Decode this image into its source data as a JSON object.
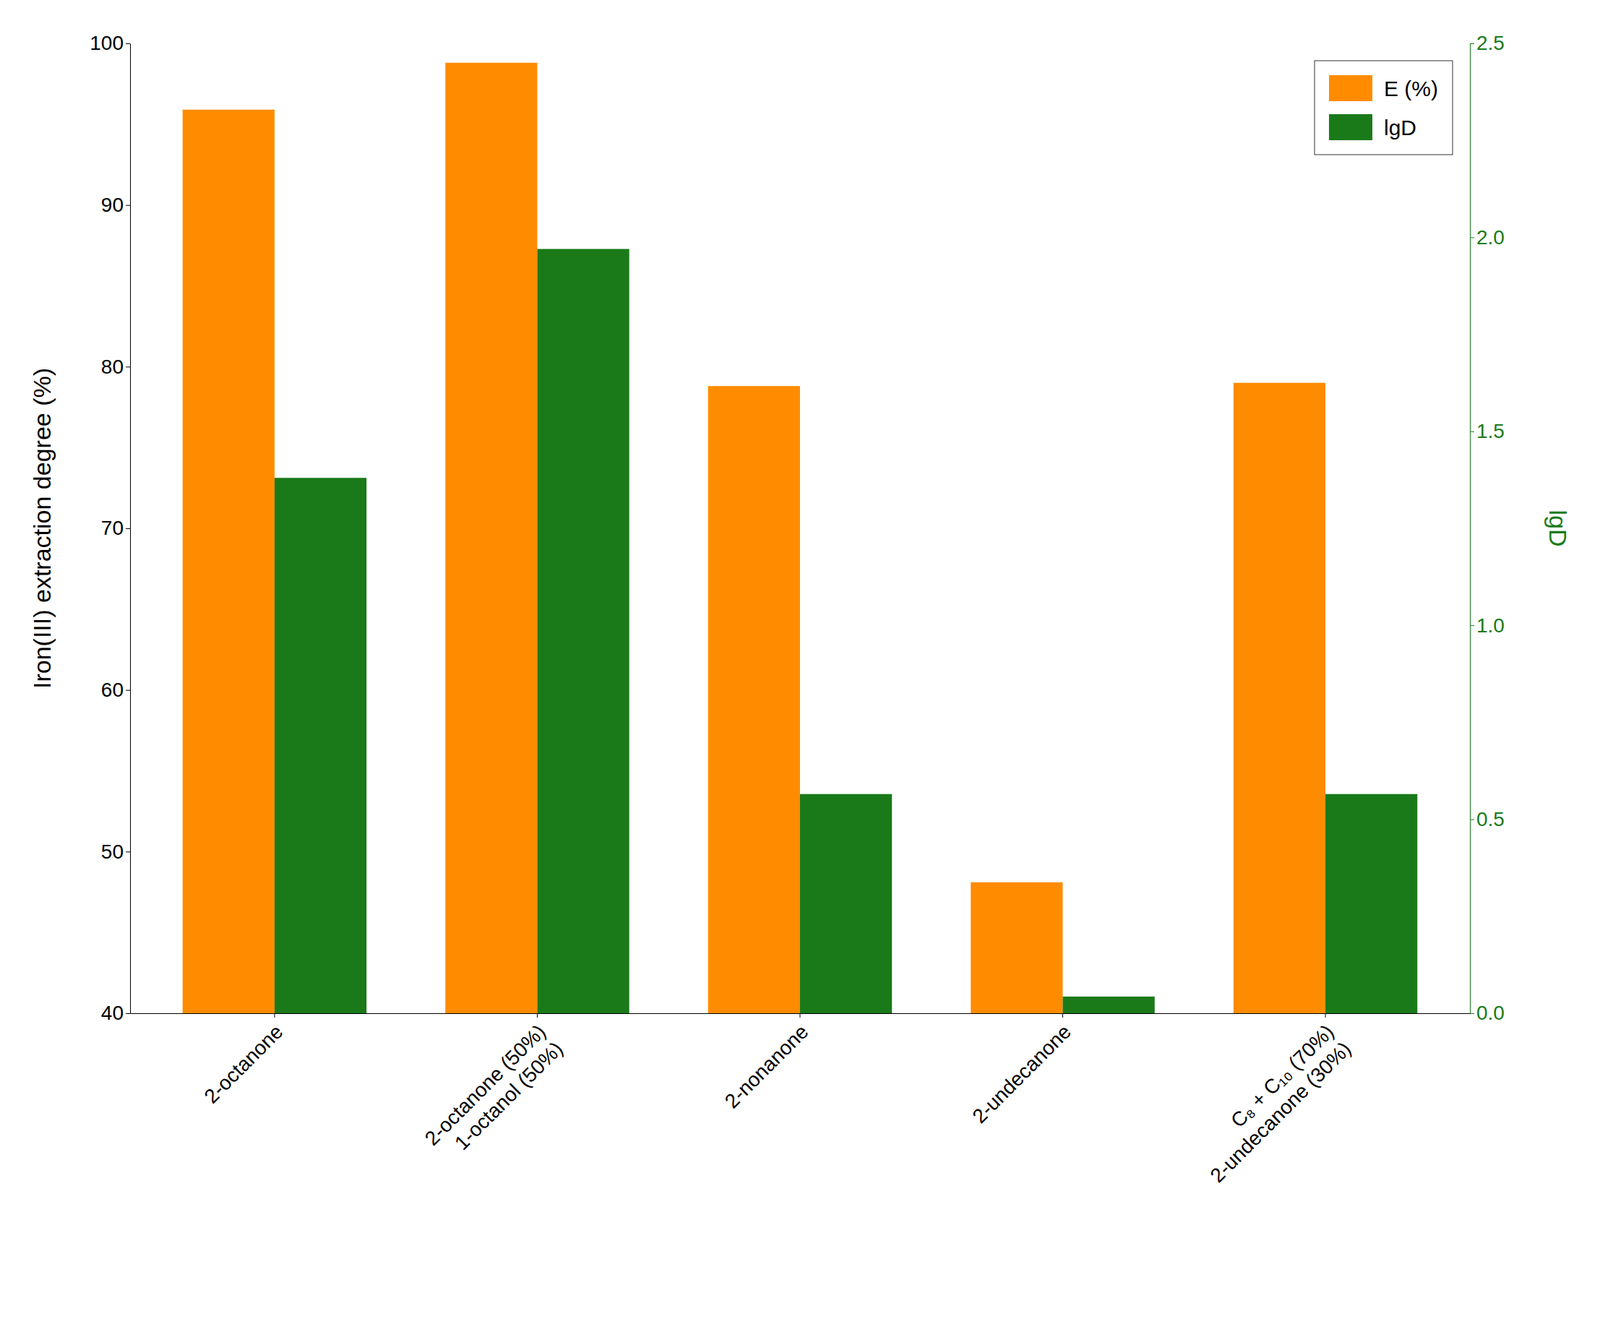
{
  "chart_data": {
    "type": "bar",
    "categories": [
      "2-octanone",
      "2-octanone (50%)\n1-octanol (50%)",
      "2-nonanone",
      "2-undecanone",
      "C₈ + C₁₀ (70%)\n2-undecanone (30%)"
    ],
    "series": [
      {
        "name": "E (%)",
        "color": "#FF8C00",
        "values": [
          95.9,
          98.8,
          78.8,
          48.1,
          79.0
        ]
      },
      {
        "name": "lgD",
        "color": "#1a7a1a",
        "axis": "y2",
        "values": [
          1.38,
          1.97,
          0.565,
          0.043,
          0.565
        ]
      }
    ],
    "ylabel": "Iron(III) extraction degree (%)",
    "y2label": "lgD",
    "ylim": [
      40,
      100
    ],
    "yticks": [
      40,
      50,
      60,
      70,
      80,
      90,
      100
    ],
    "y2lim": [
      0.0,
      2.5
    ],
    "y2ticks": [
      {
        "value": 0,
        "label": "0.0"
      },
      0.5,
      {
        "value": 1,
        "label": "1.0"
      },
      1.5,
      {
        "value": 2,
        "label": "2.0"
      },
      2.5
    ],
    "grid": false,
    "legend": "upper right"
  }
}
